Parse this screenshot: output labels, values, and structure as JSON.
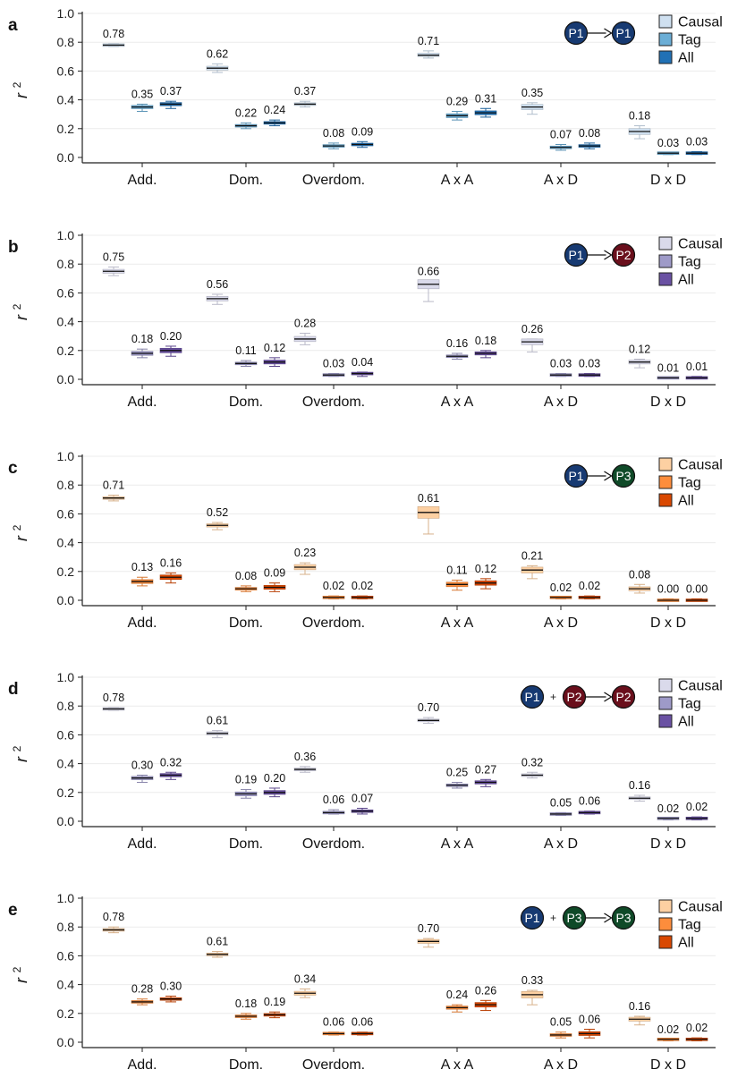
{
  "figure": {
    "ylabel": "r",
    "ylabel_sup": "2",
    "yticks": [
      "0.0",
      "0.2",
      "0.4",
      "0.6",
      "0.8",
      "1.0"
    ],
    "ylim": [
      0,
      1.0
    ],
    "categories": [
      "Add.",
      "Dom.",
      "Overdom.",
      "A x A",
      "A x D",
      "D x D"
    ],
    "series_names": [
      "Causal",
      "Tag",
      "All"
    ]
  },
  "chart_data": [
    {
      "type": "box",
      "panel": "a",
      "legend_position": "top-right",
      "diagram": {
        "nodes": [
          {
            "label": "P1",
            "color": "#173a72"
          },
          {
            "label": "P1",
            "color": "#173a72"
          }
        ],
        "plus": false
      },
      "colors": {
        "Causal": "#cfe0f0",
        "Tag": "#6baed6",
        "All": "#2171b5"
      },
      "categories": [
        "Add.",
        "Dom.",
        "Overdom.",
        "A x A",
        "A x D",
        "D x D"
      ],
      "series": [
        {
          "name": "Causal",
          "values": [
            0.78,
            0.62,
            0.37,
            0.71,
            0.35,
            0.18
          ],
          "low": [
            0.77,
            0.59,
            0.35,
            0.69,
            0.3,
            0.13
          ],
          "high": [
            0.79,
            0.65,
            0.39,
            0.74,
            0.38,
            0.22
          ],
          "labels": [
            "0.78",
            "0.62",
            "0.37",
            "0.71",
            "0.35",
            "0.18"
          ]
        },
        {
          "name": "Tag",
          "values": [
            0.35,
            0.22,
            0.08,
            0.29,
            0.07,
            0.03
          ],
          "low": [
            0.32,
            0.2,
            0.06,
            0.26,
            0.05,
            0.02
          ],
          "high": [
            0.37,
            0.24,
            0.1,
            0.32,
            0.09,
            0.03
          ],
          "labels": [
            "0.35",
            "0.22",
            "0.08",
            "0.29",
            "0.07",
            "0.03"
          ]
        },
        {
          "name": "All",
          "values": [
            0.37,
            0.24,
            0.09,
            0.31,
            0.08,
            0.03
          ],
          "low": [
            0.34,
            0.22,
            0.07,
            0.28,
            0.06,
            0.02
          ],
          "high": [
            0.39,
            0.26,
            0.11,
            0.34,
            0.1,
            0.04
          ],
          "labels": [
            "0.37",
            "0.24",
            "0.09",
            "0.31",
            "0.08",
            "0.03"
          ]
        }
      ]
    },
    {
      "type": "box",
      "panel": "b",
      "legend_position": "top-right",
      "diagram": {
        "nodes": [
          {
            "label": "P1",
            "color": "#173a72"
          },
          {
            "label": "P2",
            "color": "#6a0f1c"
          }
        ],
        "plus": false
      },
      "colors": {
        "Causal": "#dadaeb",
        "Tag": "#9e9ac8",
        "All": "#6a51a3"
      },
      "categories": [
        "Add.",
        "Dom.",
        "Overdom.",
        "A x A",
        "A x D",
        "D x D"
      ],
      "series": [
        {
          "name": "Causal",
          "values": [
            0.75,
            0.56,
            0.28,
            0.66,
            0.26,
            0.12
          ],
          "low": [
            0.72,
            0.52,
            0.24,
            0.54,
            0.19,
            0.08
          ],
          "high": [
            0.78,
            0.59,
            0.32,
            0.68,
            0.28,
            0.14
          ],
          "labels": [
            "0.75",
            "0.56",
            "0.28",
            "0.66",
            "0.26",
            "0.12"
          ]
        },
        {
          "name": "Tag",
          "values": [
            0.18,
            0.11,
            0.03,
            0.16,
            0.03,
            0.01
          ],
          "low": [
            0.15,
            0.09,
            0.02,
            0.14,
            0.02,
            0.01
          ],
          "high": [
            0.21,
            0.13,
            0.04,
            0.18,
            0.04,
            0.01
          ],
          "labels": [
            "0.18",
            "0.11",
            "0.03",
            "0.16",
            "0.03",
            "0.01"
          ]
        },
        {
          "name": "All",
          "values": [
            0.2,
            0.12,
            0.04,
            0.18,
            0.03,
            0.01
          ],
          "low": [
            0.16,
            0.09,
            0.02,
            0.15,
            0.02,
            0.01
          ],
          "high": [
            0.23,
            0.15,
            0.05,
            0.2,
            0.04,
            0.02
          ],
          "labels": [
            "0.20",
            "0.12",
            "0.04",
            "0.18",
            "0.03",
            "0.01"
          ]
        }
      ]
    },
    {
      "type": "box",
      "panel": "c",
      "legend_position": "top-right",
      "diagram": {
        "nodes": [
          {
            "label": "P1",
            "color": "#173a72"
          },
          {
            "label": "P3",
            "color": "#0f4a28"
          }
        ],
        "plus": false
      },
      "colors": {
        "Causal": "#fdd0a2",
        "Tag": "#fd8d3c",
        "All": "#d94801"
      },
      "categories": [
        "Add.",
        "Dom.",
        "Overdom.",
        "A x A",
        "A x D",
        "D x D"
      ],
      "series": [
        {
          "name": "Causal",
          "values": [
            0.71,
            0.52,
            0.23,
            0.61,
            0.21,
            0.08
          ],
          "low": [
            0.69,
            0.49,
            0.18,
            0.46,
            0.15,
            0.05
          ],
          "high": [
            0.73,
            0.54,
            0.26,
            0.64,
            0.24,
            0.11
          ],
          "labels": [
            "0.71",
            "0.52",
            "0.23",
            "0.61",
            "0.21",
            "0.08"
          ]
        },
        {
          "name": "Tag",
          "values": [
            0.13,
            0.08,
            0.02,
            0.11,
            0.02,
            0.0
          ],
          "low": [
            0.1,
            0.06,
            0.01,
            0.07,
            0.01,
            0.0
          ],
          "high": [
            0.16,
            0.1,
            0.03,
            0.14,
            0.02,
            0.01
          ],
          "labels": [
            "0.13",
            "0.08",
            "0.02",
            "0.11",
            "0.02",
            "0.00"
          ]
        },
        {
          "name": "All",
          "values": [
            0.16,
            0.09,
            0.02,
            0.12,
            0.02,
            0.0
          ],
          "low": [
            0.12,
            0.06,
            0.01,
            0.08,
            0.01,
            0.0
          ],
          "high": [
            0.19,
            0.12,
            0.03,
            0.15,
            0.03,
            0.01
          ],
          "labels": [
            "0.16",
            "0.09",
            "0.02",
            "0.12",
            "0.02",
            "0.00"
          ]
        }
      ]
    },
    {
      "type": "box",
      "panel": "d",
      "legend_position": "top-right",
      "diagram": {
        "nodes": [
          {
            "label": "P1",
            "color": "#173a72"
          },
          {
            "label": "P2",
            "color": "#6a0f1c"
          },
          {
            "label": "P2",
            "color": "#6a0f1c"
          }
        ],
        "plus": true,
        "plus_label": "+"
      },
      "colors": {
        "Causal": "#dadaeb",
        "Tag": "#9e9ac8",
        "All": "#6a51a3"
      },
      "categories": [
        "Add.",
        "Dom.",
        "Overdom.",
        "A x A",
        "A x D",
        "D x D"
      ],
      "series": [
        {
          "name": "Causal",
          "values": [
            0.78,
            0.61,
            0.36,
            0.7,
            0.32,
            0.16
          ],
          "low": [
            0.77,
            0.58,
            0.34,
            0.68,
            0.3,
            0.14
          ],
          "high": [
            0.79,
            0.63,
            0.38,
            0.72,
            0.34,
            0.18
          ],
          "labels": [
            "0.78",
            "0.61",
            "0.36",
            "0.70",
            "0.32",
            "0.16"
          ]
        },
        {
          "name": "Tag",
          "values": [
            0.3,
            0.19,
            0.06,
            0.25,
            0.05,
            0.02
          ],
          "low": [
            0.27,
            0.16,
            0.05,
            0.23,
            0.04,
            0.01
          ],
          "high": [
            0.32,
            0.22,
            0.08,
            0.27,
            0.06,
            0.02
          ],
          "labels": [
            "0.30",
            "0.19",
            "0.06",
            "0.25",
            "0.05",
            "0.02"
          ]
        },
        {
          "name": "All",
          "values": [
            0.32,
            0.2,
            0.07,
            0.27,
            0.06,
            0.02
          ],
          "low": [
            0.29,
            0.17,
            0.05,
            0.24,
            0.05,
            0.01
          ],
          "high": [
            0.34,
            0.23,
            0.09,
            0.29,
            0.07,
            0.03
          ],
          "labels": [
            "0.32",
            "0.20",
            "0.07",
            "0.27",
            "0.06",
            "0.02"
          ]
        }
      ]
    },
    {
      "type": "box",
      "panel": "e",
      "legend_position": "top-right",
      "diagram": {
        "nodes": [
          {
            "label": "P1",
            "color": "#173a72"
          },
          {
            "label": "P3",
            "color": "#0f4a28"
          },
          {
            "label": "P3",
            "color": "#0f4a28"
          }
        ],
        "plus": true,
        "plus_label": "+"
      },
      "colors": {
        "Causal": "#fdd0a2",
        "Tag": "#fd8d3c",
        "All": "#d94801"
      },
      "categories": [
        "Add.",
        "Dom.",
        "Overdom.",
        "A x A",
        "A x D",
        "D x D"
      ],
      "series": [
        {
          "name": "Causal",
          "values": [
            0.78,
            0.61,
            0.34,
            0.7,
            0.33,
            0.16
          ],
          "low": [
            0.76,
            0.59,
            0.31,
            0.66,
            0.26,
            0.12
          ],
          "high": [
            0.8,
            0.63,
            0.37,
            0.72,
            0.36,
            0.18
          ],
          "labels": [
            "0.78",
            "0.61",
            "0.34",
            "0.70",
            "0.33",
            "0.16"
          ]
        },
        {
          "name": "Tag",
          "values": [
            0.28,
            0.18,
            0.06,
            0.24,
            0.05,
            0.02
          ],
          "low": [
            0.26,
            0.16,
            0.05,
            0.21,
            0.03,
            0.01
          ],
          "high": [
            0.3,
            0.2,
            0.07,
            0.26,
            0.07,
            0.02
          ],
          "labels": [
            "0.28",
            "0.18",
            "0.06",
            "0.24",
            "0.05",
            "0.02"
          ]
        },
        {
          "name": "All",
          "values": [
            0.3,
            0.19,
            0.06,
            0.26,
            0.06,
            0.02
          ],
          "low": [
            0.28,
            0.17,
            0.05,
            0.22,
            0.03,
            0.01
          ],
          "high": [
            0.32,
            0.21,
            0.07,
            0.29,
            0.09,
            0.03
          ],
          "labels": [
            "0.30",
            "0.19",
            "0.06",
            "0.26",
            "0.06",
            "0.02"
          ]
        }
      ]
    }
  ]
}
